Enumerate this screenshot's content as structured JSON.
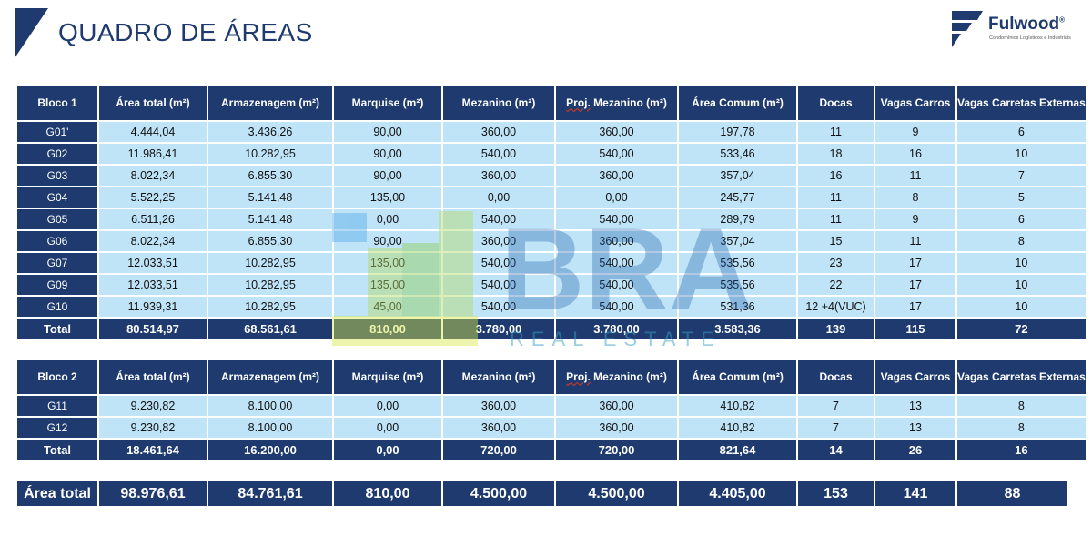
{
  "header": {
    "title": "QUADRO DE ÁREAS",
    "logo_name": "Fulwood",
    "logo_tagline": "Condomínios Logísticos e Industriais",
    "logo_registered": "®"
  },
  "columns": {
    "area_total": "Área total (m²)",
    "armazenagem": "Armazenagem (m²)",
    "marquise": "Marquise (m²)",
    "mezanino": "Mezanino (m²)",
    "proj_prefix": "Proj.",
    "proj_rest": " Mezanino (m²)",
    "area_comum": "Área Comum (m²)",
    "docas": "Docas",
    "vagas_carros": "Vagas Carros",
    "vagas_carretas": "Vagas Carretas Externas"
  },
  "bloco1": {
    "label": "Bloco 1",
    "rows": [
      [
        "G01'",
        "4.444,04",
        "3.436,26",
        "90,00",
        "360,00",
        "360,00",
        "197,78",
        "11",
        "9",
        "6"
      ],
      [
        "G02",
        "11.986,41",
        "10.282,95",
        "90,00",
        "540,00",
        "540,00",
        "533,46",
        "18",
        "16",
        "10"
      ],
      [
        "G03",
        "8.022,34",
        "6.855,30",
        "90,00",
        "360,00",
        "360,00",
        "357,04",
        "16",
        "11",
        "7"
      ],
      [
        "G04",
        "5.522,25",
        "5.141,48",
        "135,00",
        "0,00",
        "0,00",
        "245,77",
        "11",
        "8",
        "5"
      ],
      [
        "G05",
        "6.511,26",
        "5.141,48",
        "0,00",
        "540,00",
        "540,00",
        "289,79",
        "11",
        "9",
        "6"
      ],
      [
        "G06",
        "8.022,34",
        "6.855,30",
        "90,00",
        "360,00",
        "360,00",
        "357,04",
        "15",
        "11",
        "8"
      ],
      [
        "G07",
        "12.033,51",
        "10.282,95",
        "135,00",
        "540,00",
        "540,00",
        "535,56",
        "23",
        "17",
        "10"
      ],
      [
        "G09",
        "12.033,51",
        "10.282,95",
        "135,00",
        "540,00",
        "540,00",
        "535,56",
        "22",
        "17",
        "10"
      ],
      [
        "G10",
        "11.939,31",
        "10.282,95",
        "45,00",
        "540,00",
        "540,00",
        "531,36",
        "12 +4(VUC)",
        "17",
        "10"
      ]
    ],
    "total": [
      "Total",
      "80.514,97",
      "68.561,61",
      "810,00",
      "3.780,00",
      "3.780,00",
      "3.583,36",
      "139",
      "115",
      "72"
    ]
  },
  "bloco2": {
    "label": "Bloco 2",
    "rows": [
      [
        "G11",
        "9.230,82",
        "8.100,00",
        "0,00",
        "360,00",
        "360,00",
        "410,82",
        "7",
        "13",
        "8"
      ],
      [
        "G12",
        "9.230,82",
        "8.100,00",
        "0,00",
        "360,00",
        "360,00",
        "410,82",
        "7",
        "13",
        "8"
      ]
    ],
    "total": [
      "Total",
      "18.461,64",
      "16.200,00",
      "0,00",
      "720,00",
      "720,00",
      "821,64",
      "14",
      "26",
      "16"
    ]
  },
  "grand_total": [
    "Área total",
    "98.976,61",
    "84.761,61",
    "810,00",
    "4.500,00",
    "4.500,00",
    "4.405,00",
    "153",
    "141",
    "88"
  ],
  "watermark": {
    "line1": "BRA",
    "line2": "REAL ESTATE"
  },
  "colors": {
    "navy": "#1e3a6e",
    "cell_bg": "#bfe3f7",
    "white": "#ffffff"
  }
}
